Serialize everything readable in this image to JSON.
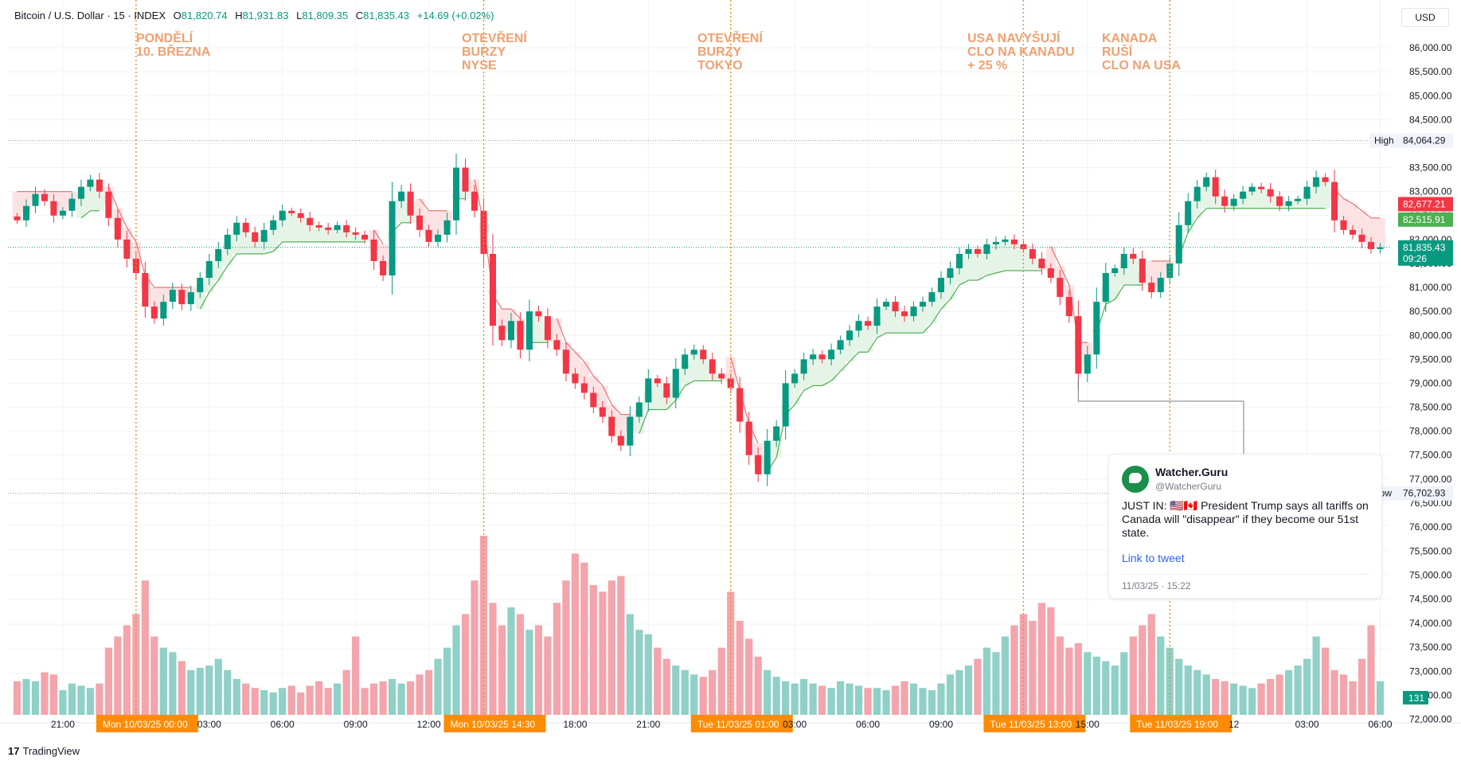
{
  "header": {
    "symbol": "Bitcoin / U.S. Dollar · 15 · INDEX",
    "o_label": "O",
    "o_value": "81,820.74",
    "h_label": "H",
    "h_value": "81,931.83",
    "l_label": "L",
    "l_value": "81,809.35",
    "c_label": "C",
    "c_value": "81,835.43",
    "change": "+14.69 (+0.02%)"
  },
  "currency": "USD",
  "events": [
    "PONDĚLÍ\n10. BŘEZNA",
    "OTEVŘENÍ\nBURZY\nNYSE",
    "OTEVŘENÍ\nBURZY\nTOKYO",
    "USA NAVYŠUJÍ\nCLO NA KANADU\n+ 25 %",
    "KANADA\nRUŠÍ\nCLO NA USA"
  ],
  "tweet": {
    "name": "Watcher.Guru",
    "handle": "@WatcherGuru",
    "text": "JUST IN: 🇺🇸🇨🇦 President Trump says all tariffs on Canada will \"disappear\" if they become our 51st state.",
    "link": "Link to tweet",
    "time": "11/03/25 · 15:22"
  },
  "brand": {
    "mark": "17",
    "name": "TradingView"
  },
  "colors": {
    "up": "#089981",
    "down": "#f23645",
    "vol_up": "#8fd0c7",
    "vol_down": "#f4a4ab",
    "event_line": "#e0921e",
    "event_text": "#f0a070",
    "stop_up": "#4caf50",
    "stop_down": "#e57373",
    "fill_up": "#e6f4e7",
    "fill_down": "#fde2e4",
    "tag_bg": "#ff8c00",
    "high_low_line": "#9598a1"
  },
  "chart_data": {
    "type": "candlestick",
    "interval": "15",
    "ylim": [
      76200,
      86500
    ],
    "price_ticks": [
      "86,000.00",
      "85,500.00",
      "85,000.00",
      "84,500.00",
      "84,000.00",
      "83,500.00",
      "83,000.00",
      "82,500.00",
      "82,000.00",
      "81,500.00",
      "81,000.00",
      "80,500.00",
      "80,000.00",
      "79,500.00",
      "79,000.00",
      "78,500.00",
      "78,000.00",
      "77,500.00",
      "77,000.00",
      "76,500.00",
      "76,000.00",
      "75,500.00",
      "75,000.00",
      "74,500.00",
      "74,000.00",
      "73,500.00",
      "73,000.00",
      "72,500.00",
      "72,000.00"
    ],
    "price_tick_values": [
      86000,
      85500,
      85000,
      84500,
      84000,
      83500,
      83000,
      82500,
      82000,
      81500,
      81000,
      80500,
      80000,
      79500,
      79000,
      78500,
      78000,
      77500,
      77000,
      76500,
      76000,
      75500,
      75000,
      74500,
      74000,
      73500,
      73000,
      72500,
      72000
    ],
    "time_labels": [
      {
        "i": 5,
        "text": "21:00"
      },
      {
        "i": 21,
        "text": "03:00"
      },
      {
        "i": 29,
        "text": "06:00"
      },
      {
        "i": 37,
        "text": "09:00"
      },
      {
        "i": 45,
        "text": "12:00"
      },
      {
        "i": 61,
        "text": "18:00"
      },
      {
        "i": 69,
        "text": "21:00"
      },
      {
        "i": 85,
        "text": "03:00"
      },
      {
        "i": 93,
        "text": "06:00"
      },
      {
        "i": 101,
        "text": "09:00"
      },
      {
        "i": 117,
        "text": "15:00"
      },
      {
        "i": 133,
        "text": "12"
      },
      {
        "i": 141,
        "text": "03:00"
      },
      {
        "i": 149,
        "text": "06:00"
      }
    ],
    "event_tags": [
      {
        "i": 13,
        "text": "Mon 10/03/25   00:00"
      },
      {
        "i": 51,
        "text": "Mon 10/03/25   14:30"
      },
      {
        "i": 78,
        "text": "Tue 11/03/25   01:00"
      },
      {
        "i": 110,
        "text": "Tue 11/03/25   13:00"
      },
      {
        "i": 126,
        "text": "Tue 11/03/25   19:00"
      }
    ],
    "high": {
      "label": "High",
      "value": 84064.29,
      "text": "84,064.29"
    },
    "low": {
      "label": "Low",
      "value": 76702.93,
      "text": "76,702.93"
    },
    "last_price": {
      "value": 81835.43,
      "text": "81,835.43",
      "countdown": "09:26"
    },
    "stop_short_level": {
      "value": 82677.21,
      "text": "82,677.21"
    },
    "stop_long_level": {
      "value": 82515.91,
      "text": "82,515.91"
    },
    "last_volume": "131",
    "closes": [
      82400,
      82700,
      82950,
      82800,
      82500,
      82600,
      82850,
      83100,
      83250,
      83000,
      82450,
      82000,
      81600,
      81300,
      80600,
      80350,
      80700,
      80950,
      80650,
      80900,
      81200,
      81550,
      81800,
      82100,
      82350,
      82150,
      81950,
      82200,
      82400,
      82600,
      82550,
      82450,
      82300,
      82250,
      82200,
      82300,
      82150,
      82100,
      82000,
      81550,
      81250,
      82800,
      83000,
      82500,
      82200,
      81950,
      82100,
      82400,
      83500,
      83000,
      82600,
      81700,
      80200,
      79900,
      80300,
      79700,
      80500,
      80400,
      79900,
      79700,
      79200,
      79000,
      78800,
      78500,
      78300,
      77900,
      77700,
      78300,
      78600,
      79100,
      79000,
      78700,
      79300,
      79600,
      79700,
      79500,
      79200,
      79100,
      78900,
      78200,
      77500,
      77100,
      77800,
      78100,
      79000,
      79200,
      79500,
      79600,
      79500,
      79700,
      79900,
      80100,
      80300,
      80200,
      80600,
      80700,
      80500,
      80400,
      80600,
      80700,
      80900,
      81200,
      81400,
      81700,
      81800,
      81700,
      81900,
      81950,
      82000,
      81900,
      81800,
      81600,
      81400,
      81200,
      80800,
      80400,
      79200,
      79600,
      80700,
      81300,
      81400,
      81700,
      81600,
      81100,
      80900,
      81200,
      81500,
      82300,
      82800,
      83100,
      83300,
      82900,
      82700,
      82850,
      83000,
      83100,
      83050,
      82900,
      82700,
      82800,
      82850,
      83100,
      83300,
      83200,
      82400,
      82200,
      82100,
      81950,
      81800,
      81835
    ],
    "volumes": [
      15,
      16,
      15,
      19,
      18,
      11,
      14,
      13,
      12,
      14,
      30,
      35,
      40,
      45,
      60,
      35,
      30,
      28,
      24,
      20,
      21,
      22,
      25,
      20,
      16,
      14,
      12,
      11,
      10,
      12,
      13,
      10,
      13,
      15,
      12,
      14,
      20,
      35,
      12,
      14,
      15,
      16,
      14,
      15,
      18,
      20,
      25,
      30,
      40,
      45,
      60,
      80,
      50,
      40,
      48,
      45,
      38,
      40,
      35,
      50,
      60,
      72,
      68,
      58,
      55,
      60,
      62,
      45,
      38,
      36,
      30,
      25,
      22,
      20,
      18,
      17,
      20,
      30,
      55,
      42,
      34,
      26,
      20,
      17,
      15,
      14,
      16,
      14,
      13,
      12,
      15,
      14,
      13,
      12,
      12,
      11,
      13,
      15,
      14,
      12,
      11,
      14,
      18,
      20,
      22,
      25,
      30,
      28,
      35,
      40,
      45,
      42,
      50,
      48,
      35,
      30,
      32,
      28,
      26,
      24,
      22,
      28,
      35,
      40,
      45,
      35,
      30,
      25,
      22,
      20,
      18,
      16,
      15,
      14,
      13,
      12,
      14,
      16,
      18,
      20,
      22,
      25,
      35,
      30,
      20,
      18,
      15,
      25,
      40,
      15
    ]
  }
}
